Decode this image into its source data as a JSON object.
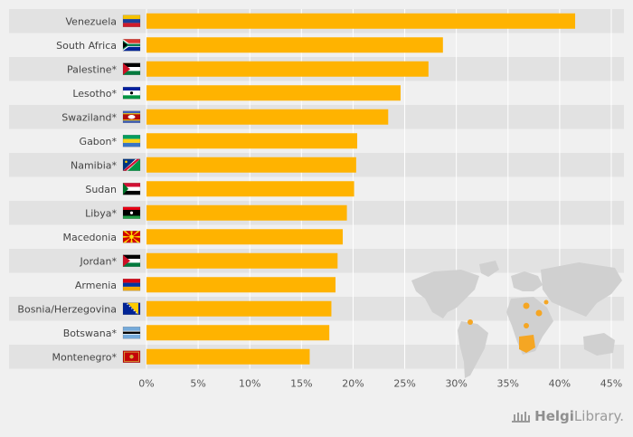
{
  "chart_data": {
    "type": "bar",
    "orientation": "horizontal",
    "categories": [
      "Venezuela",
      "South Africa",
      "Palestine*",
      "Lesotho*",
      "Swaziland*",
      "Gabon*",
      "Namibia*",
      "Sudan",
      "Libya*",
      "Macedonia",
      "Jordan*",
      "Armenia",
      "Bosnia/Herzegovina",
      "Botswana*",
      "Montenegro*"
    ],
    "values": [
      41.5,
      28.7,
      27.3,
      24.6,
      23.4,
      20.4,
      20.3,
      20.1,
      19.4,
      19.0,
      18.5,
      18.3,
      17.9,
      17.7,
      15.8
    ],
    "xlim": [
      0,
      45
    ],
    "xticks": [
      0,
      5,
      10,
      15,
      20,
      25,
      30,
      35,
      40,
      45
    ],
    "tick_format": "{}%",
    "bar_color": "#ffb300",
    "title": "",
    "xlabel": "",
    "ylabel": ""
  },
  "flags": [
    "venezuela-flag-icon",
    "south-africa-flag-icon",
    "palestine-flag-icon",
    "lesotho-flag-icon",
    "swaziland-flag-icon",
    "gabon-flag-icon",
    "namibia-flag-icon",
    "sudan-flag-icon",
    "libya-flag-icon",
    "macedonia-flag-icon",
    "jordan-flag-icon",
    "armenia-flag-icon",
    "bosnia-herzegovina-flag-icon",
    "botswana-flag-icon",
    "montenegro-flag-icon"
  ],
  "colors": {
    "bar": "#ffb300",
    "row_band": "#e2e2e2",
    "map_land": "#cfcfcf",
    "map_highlight": "#f5a623"
  },
  "brand": {
    "part1": "Helgi",
    "part2": "Library."
  }
}
